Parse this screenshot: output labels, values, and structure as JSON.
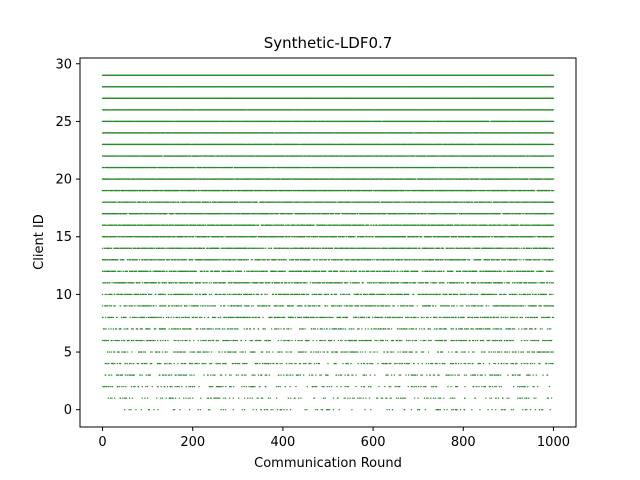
{
  "chart_data": {
    "type": "scatter",
    "title": "Synthetic-LDF0.7",
    "xlabel": "Communication Round",
    "ylabel": "Client ID",
    "xlim": [
      -50,
      1050
    ],
    "ylim": [
      -1.5,
      30.5
    ],
    "xticks": [
      0,
      200,
      400,
      600,
      800,
      1000
    ],
    "yticks": [
      0,
      5,
      10,
      15,
      20,
      25,
      30
    ],
    "grid": false,
    "marker_color": "#2a8a2a",
    "rounds": [
      0,
      1000
    ],
    "clients": [
      {
        "id": 0,
        "participation_rate": 0.1
      },
      {
        "id": 1,
        "participation_rate": 0.13
      },
      {
        "id": 2,
        "participation_rate": 0.16
      },
      {
        "id": 3,
        "participation_rate": 0.19
      },
      {
        "id": 4,
        "participation_rate": 0.22
      },
      {
        "id": 5,
        "participation_rate": 0.26
      },
      {
        "id": 6,
        "participation_rate": 0.29
      },
      {
        "id": 7,
        "participation_rate": 0.32
      },
      {
        "id": 8,
        "participation_rate": 0.36
      },
      {
        "id": 9,
        "participation_rate": 0.4
      },
      {
        "id": 10,
        "participation_rate": 0.44
      },
      {
        "id": 11,
        "participation_rate": 0.48
      },
      {
        "id": 12,
        "participation_rate": 0.52
      },
      {
        "id": 13,
        "participation_rate": 0.56
      },
      {
        "id": 14,
        "participation_rate": 0.6
      },
      {
        "id": 15,
        "participation_rate": 0.64
      },
      {
        "id": 16,
        "participation_rate": 0.68
      },
      {
        "id": 17,
        "participation_rate": 0.72
      },
      {
        "id": 18,
        "participation_rate": 0.76
      },
      {
        "id": 19,
        "participation_rate": 0.8
      },
      {
        "id": 20,
        "participation_rate": 0.84
      },
      {
        "id": 21,
        "participation_rate": 0.87
      },
      {
        "id": 22,
        "participation_rate": 0.9
      },
      {
        "id": 23,
        "participation_rate": 0.93
      },
      {
        "id": 24,
        "participation_rate": 0.95
      },
      {
        "id": 25,
        "participation_rate": 0.97
      },
      {
        "id": 26,
        "participation_rate": 0.98
      },
      {
        "id": 27,
        "participation_rate": 0.99
      },
      {
        "id": 28,
        "participation_rate": 0.995
      },
      {
        "id": 29,
        "participation_rate": 1.0
      }
    ]
  }
}
